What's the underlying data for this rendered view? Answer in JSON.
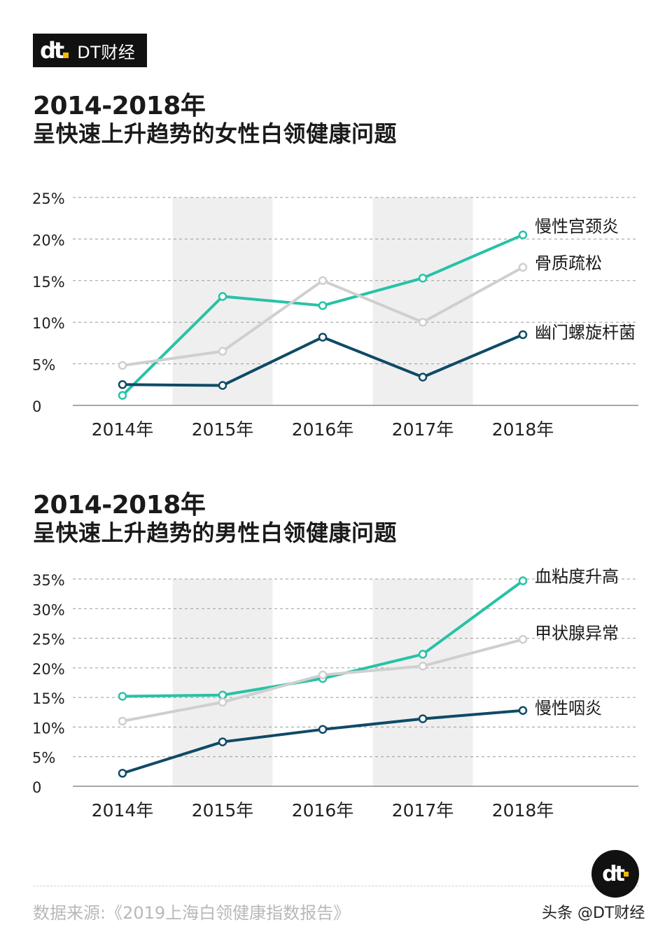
{
  "brand": {
    "logo_mark": "dt",
    "name": "DT财经"
  },
  "charts": [
    {
      "title_line1": "2014-2018年",
      "title_line2": "呈快速上升趋势的女性白领健康问题"
    },
    {
      "title_line1": "2014-2018年",
      "title_line2": "呈快速上升趋势的男性白领健康问题"
    }
  ],
  "chart_data": [
    {
      "type": "line",
      "categories": [
        "2014年",
        "2015年",
        "2016年",
        "2017年",
        "2018年"
      ],
      "ylim": [
        0,
        25
      ],
      "yticks": [
        "0",
        "5%",
        "10%",
        "15%",
        "20%",
        "25%"
      ],
      "grid": true,
      "shaded_columns": [
        "2015年",
        "2017年"
      ],
      "series": [
        {
          "name": "慢性宫颈炎",
          "color": "#27c2a6",
          "values": [
            1.2,
            13.1,
            12.0,
            15.3,
            20.5
          ]
        },
        {
          "name": "骨质疏松",
          "color": "#cfcfcf",
          "values": [
            4.8,
            6.5,
            15.0,
            10.0,
            16.6
          ]
        },
        {
          "name": "幽门螺旋杆菌",
          "color": "#0f4a66",
          "values": [
            2.5,
            2.4,
            8.2,
            3.4,
            8.5
          ]
        }
      ]
    },
    {
      "type": "line",
      "categories": [
        "2014年",
        "2015年",
        "2016年",
        "2017年",
        "2018年"
      ],
      "ylim": [
        0,
        35
      ],
      "yticks": [
        "0",
        "5%",
        "10%",
        "15%",
        "20%",
        "25%",
        "30%",
        "35%"
      ],
      "grid": true,
      "shaded_columns": [
        "2015年",
        "2017年"
      ],
      "series": [
        {
          "name": "血粘度升高",
          "color": "#27c2a6",
          "values": [
            15.2,
            15.4,
            18.2,
            22.3,
            34.7
          ]
        },
        {
          "name": "甲状腺异常",
          "color": "#cfcfcf",
          "values": [
            11.0,
            14.2,
            18.8,
            20.3,
            24.8
          ]
        },
        {
          "name": "慢性咽炎",
          "color": "#0f4a66",
          "values": [
            2.2,
            7.5,
            9.6,
            11.4,
            12.8
          ]
        }
      ]
    }
  ],
  "source": "数据来源:《2019上海白领健康指数报告》",
  "watermark_footer": "头条 @DT财经"
}
